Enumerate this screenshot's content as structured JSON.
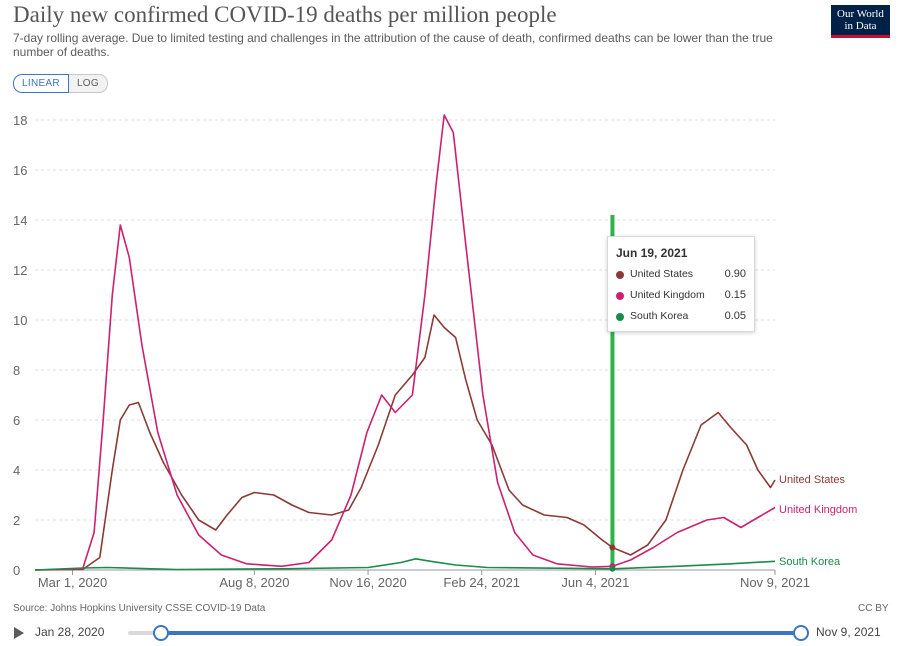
{
  "header": {
    "title": "Daily new confirmed COVID-19 deaths per million people",
    "subtitle": "7-day rolling average. Due to limited testing and challenges in the attribution of the cause of death, confirmed deaths can be lower than the true number of deaths.",
    "logo_line1": "Our World",
    "logo_line2": "in Data"
  },
  "scale_toggle": {
    "linear": "LINEAR",
    "log": "LOG",
    "active": "LINEAR"
  },
  "tooltip": {
    "date": "Jun 19, 2021",
    "rows": [
      {
        "name": "United States",
        "value": "0.90",
        "color": "#8a3b36"
      },
      {
        "name": "United Kingdom",
        "value": "0.15",
        "color": "#cc2170"
      },
      {
        "name": "South Korea",
        "value": "0.05",
        "color": "#1c8a4a"
      }
    ]
  },
  "footer": {
    "source": "Source: Johns Hopkins University CSSE COVID-19 Data",
    "license": "CC BY"
  },
  "timeline": {
    "start": "Jan 28, 2020",
    "end": "Nov 9, 2021"
  },
  "chart_data": {
    "type": "line",
    "title": "Daily new confirmed COVID-19 deaths per million people",
    "xlabel": "",
    "ylabel": "",
    "ylim": [
      0,
      18
    ],
    "y_ticks": [
      0,
      2,
      4,
      6,
      8,
      10,
      12,
      14,
      16,
      18
    ],
    "x_tick_labels": [
      "Mar 1, 2020",
      "Aug 8, 2020",
      "Nov 16, 2020",
      "Feb 24, 2021",
      "Jun 4, 2021",
      "Nov 9, 2021"
    ],
    "x_range": [
      "2020-01-28",
      "2021-11-09"
    ],
    "grid": "horizontal dashed",
    "highlight_date": "2021-06-19",
    "highlight_color": "#2db34a",
    "series": [
      {
        "name": "United States",
        "color": "#8a3b36",
        "points": [
          [
            "2020-01-28",
            0
          ],
          [
            "2020-03-10",
            0.02
          ],
          [
            "2020-03-25",
            0.5
          ],
          [
            "2020-04-05",
            4.0
          ],
          [
            "2020-04-12",
            6.0
          ],
          [
            "2020-04-20",
            6.6
          ],
          [
            "2020-04-28",
            6.7
          ],
          [
            "2020-05-08",
            5.5
          ],
          [
            "2020-05-20",
            4.3
          ],
          [
            "2020-06-05",
            3.0
          ],
          [
            "2020-06-20",
            2.0
          ],
          [
            "2020-07-05",
            1.6
          ],
          [
            "2020-07-15",
            2.2
          ],
          [
            "2020-07-28",
            2.9
          ],
          [
            "2020-08-08",
            3.1
          ],
          [
            "2020-08-25",
            3.0
          ],
          [
            "2020-09-10",
            2.6
          ],
          [
            "2020-09-25",
            2.3
          ],
          [
            "2020-10-15",
            2.2
          ],
          [
            "2020-10-30",
            2.4
          ],
          [
            "2020-11-10",
            3.3
          ],
          [
            "2020-11-25",
            5.0
          ],
          [
            "2020-12-10",
            7.0
          ],
          [
            "2020-12-25",
            7.8
          ],
          [
            "2021-01-05",
            8.5
          ],
          [
            "2021-01-13",
            10.2
          ],
          [
            "2021-01-22",
            9.7
          ],
          [
            "2021-02-01",
            9.3
          ],
          [
            "2021-02-10",
            7.6
          ],
          [
            "2021-02-20",
            6.0
          ],
          [
            "2021-03-05",
            5.0
          ],
          [
            "2021-03-20",
            3.2
          ],
          [
            "2021-04-01",
            2.6
          ],
          [
            "2021-04-20",
            2.2
          ],
          [
            "2021-05-10",
            2.1
          ],
          [
            "2021-05-25",
            1.8
          ],
          [
            "2021-06-10",
            1.2
          ],
          [
            "2021-06-19",
            0.9
          ],
          [
            "2021-07-05",
            0.6
          ],
          [
            "2021-07-20",
            1.0
          ],
          [
            "2021-08-05",
            2.0
          ],
          [
            "2021-08-20",
            4.0
          ],
          [
            "2021-09-05",
            5.8
          ],
          [
            "2021-09-20",
            6.3
          ],
          [
            "2021-10-01",
            5.7
          ],
          [
            "2021-10-15",
            5.0
          ],
          [
            "2021-10-25",
            4.0
          ],
          [
            "2021-11-05",
            3.3
          ],
          [
            "2021-11-09",
            3.6
          ]
        ]
      },
      {
        "name": "United Kingdom",
        "color": "#cc2170",
        "points": [
          [
            "2020-01-28",
            0
          ],
          [
            "2020-03-10",
            0.05
          ],
          [
            "2020-03-20",
            1.5
          ],
          [
            "2020-03-28",
            6.0
          ],
          [
            "2020-04-05",
            11.0
          ],
          [
            "2020-04-12",
            13.8
          ],
          [
            "2020-04-20",
            12.5
          ],
          [
            "2020-05-01",
            9.0
          ],
          [
            "2020-05-15",
            5.5
          ],
          [
            "2020-06-01",
            3.0
          ],
          [
            "2020-06-20",
            1.4
          ],
          [
            "2020-07-10",
            0.6
          ],
          [
            "2020-08-01",
            0.25
          ],
          [
            "2020-09-01",
            0.15
          ],
          [
            "2020-09-25",
            0.3
          ],
          [
            "2020-10-15",
            1.2
          ],
          [
            "2020-11-01",
            3.0
          ],
          [
            "2020-11-15",
            5.5
          ],
          [
            "2020-11-28",
            7.0
          ],
          [
            "2020-12-10",
            6.3
          ],
          [
            "2020-12-25",
            7.0
          ],
          [
            "2021-01-05",
            11.0
          ],
          [
            "2021-01-15",
            15.5
          ],
          [
            "2021-01-22",
            18.2
          ],
          [
            "2021-01-30",
            17.5
          ],
          [
            "2021-02-10",
            13.0
          ],
          [
            "2021-02-25",
            7.0
          ],
          [
            "2021-03-10",
            3.5
          ],
          [
            "2021-03-25",
            1.5
          ],
          [
            "2021-04-10",
            0.6
          ],
          [
            "2021-05-01",
            0.25
          ],
          [
            "2021-06-01",
            0.12
          ],
          [
            "2021-06-19",
            0.15
          ],
          [
            "2021-07-05",
            0.4
          ],
          [
            "2021-07-25",
            0.9
          ],
          [
            "2021-08-15",
            1.5
          ],
          [
            "2021-09-10",
            2.0
          ],
          [
            "2021-09-25",
            2.1
          ],
          [
            "2021-10-10",
            1.7
          ],
          [
            "2021-10-25",
            2.1
          ],
          [
            "2021-11-09",
            2.5
          ]
        ]
      },
      {
        "name": "South Korea",
        "color": "#1c8a4a",
        "points": [
          [
            "2020-01-28",
            0
          ],
          [
            "2020-03-10",
            0.08
          ],
          [
            "2020-04-01",
            0.1
          ],
          [
            "2020-06-01",
            0.02
          ],
          [
            "2020-09-01",
            0.05
          ],
          [
            "2020-11-16",
            0.1
          ],
          [
            "2020-12-15",
            0.3
          ],
          [
            "2020-12-28",
            0.45
          ],
          [
            "2021-01-10",
            0.35
          ],
          [
            "2021-02-01",
            0.2
          ],
          [
            "2021-03-01",
            0.1
          ],
          [
            "2021-06-19",
            0.05
          ],
          [
            "2021-08-15",
            0.15
          ],
          [
            "2021-10-01",
            0.25
          ],
          [
            "2021-11-09",
            0.35
          ]
        ]
      }
    ]
  }
}
